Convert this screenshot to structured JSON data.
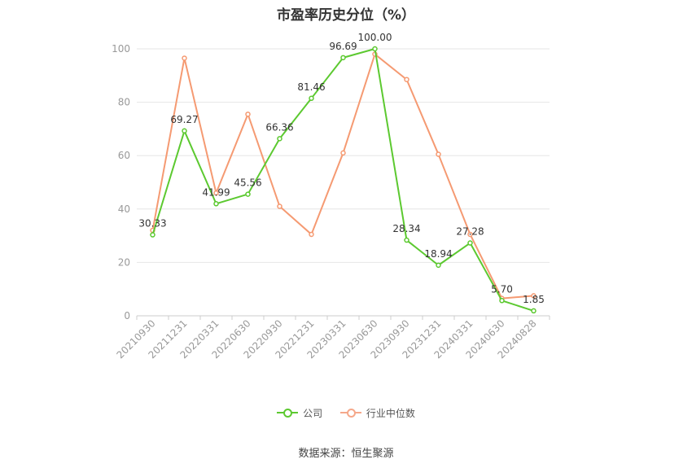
{
  "chart_data": {
    "type": "line",
    "title": "市盈率历史分位（%）",
    "categories": [
      "20210930",
      "20211231",
      "20220331",
      "20220630",
      "20220930",
      "20221231",
      "20230331",
      "20230630",
      "20230930",
      "20231231",
      "20240331",
      "20240630",
      "20240828"
    ],
    "ylim": [
      0,
      100
    ],
    "yticks": [
      "0",
      "20",
      "40",
      "60",
      "80",
      "100"
    ],
    "grid": true,
    "legend_position": "bottom",
    "series": [
      {
        "name": "公司",
        "color": "#5cc930",
        "values": [
          30.33,
          69.27,
          41.99,
          45.56,
          66.36,
          81.46,
          96.69,
          100.0,
          28.34,
          18.94,
          27.28,
          5.7,
          1.85
        ],
        "labels": [
          "30.33",
          "69.27",
          "41.99",
          "45.56",
          "66.36",
          "81.46",
          "96.69",
          "100.00",
          "28.34",
          "18.94",
          "27.28",
          "5.70",
          "1.85"
        ]
      },
      {
        "name": "行业中位数",
        "color": "#f59a72",
        "values": [
          32.0,
          96.5,
          46.0,
          75.5,
          41.0,
          30.5,
          61.0,
          98.0,
          88.5,
          60.5,
          30.5,
          6.5,
          7.5
        ]
      }
    ]
  },
  "source": "数据来源：恒生聚源"
}
